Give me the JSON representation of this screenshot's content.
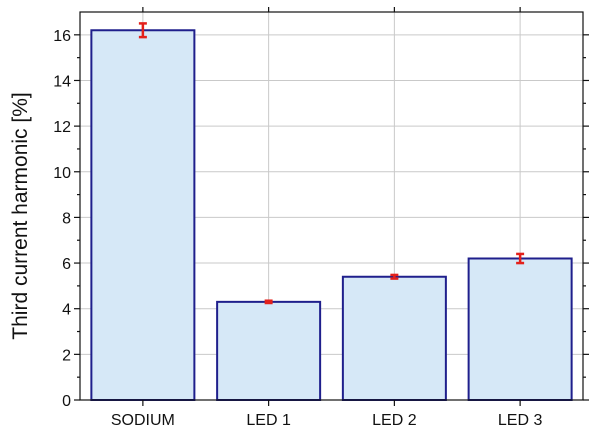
{
  "chart_data": {
    "type": "bar",
    "categories": [
      "SODIUM",
      "LED 1",
      "LED 2",
      "LED 3"
    ],
    "values": [
      16.2,
      4.3,
      5.4,
      6.2
    ],
    "error": [
      0.3,
      0.05,
      0.08,
      0.2
    ],
    "ylabel": "Third current harmonic [%]",
    "xlabel": "",
    "ylim": [
      0,
      17
    ],
    "yticks": [
      0,
      2,
      4,
      6,
      8,
      10,
      12,
      14,
      16
    ],
    "ytick_labels": [
      "0",
      "2",
      "4",
      "6",
      "8",
      "10",
      "12",
      "14",
      "16"
    ],
    "grid": true,
    "colors": {
      "bar_fill": "#d6e8f7",
      "bar_stroke": "#1f1f8c",
      "error_bar": "#e3201b",
      "grid": "#c9c9c9",
      "axis": "#111111"
    }
  }
}
